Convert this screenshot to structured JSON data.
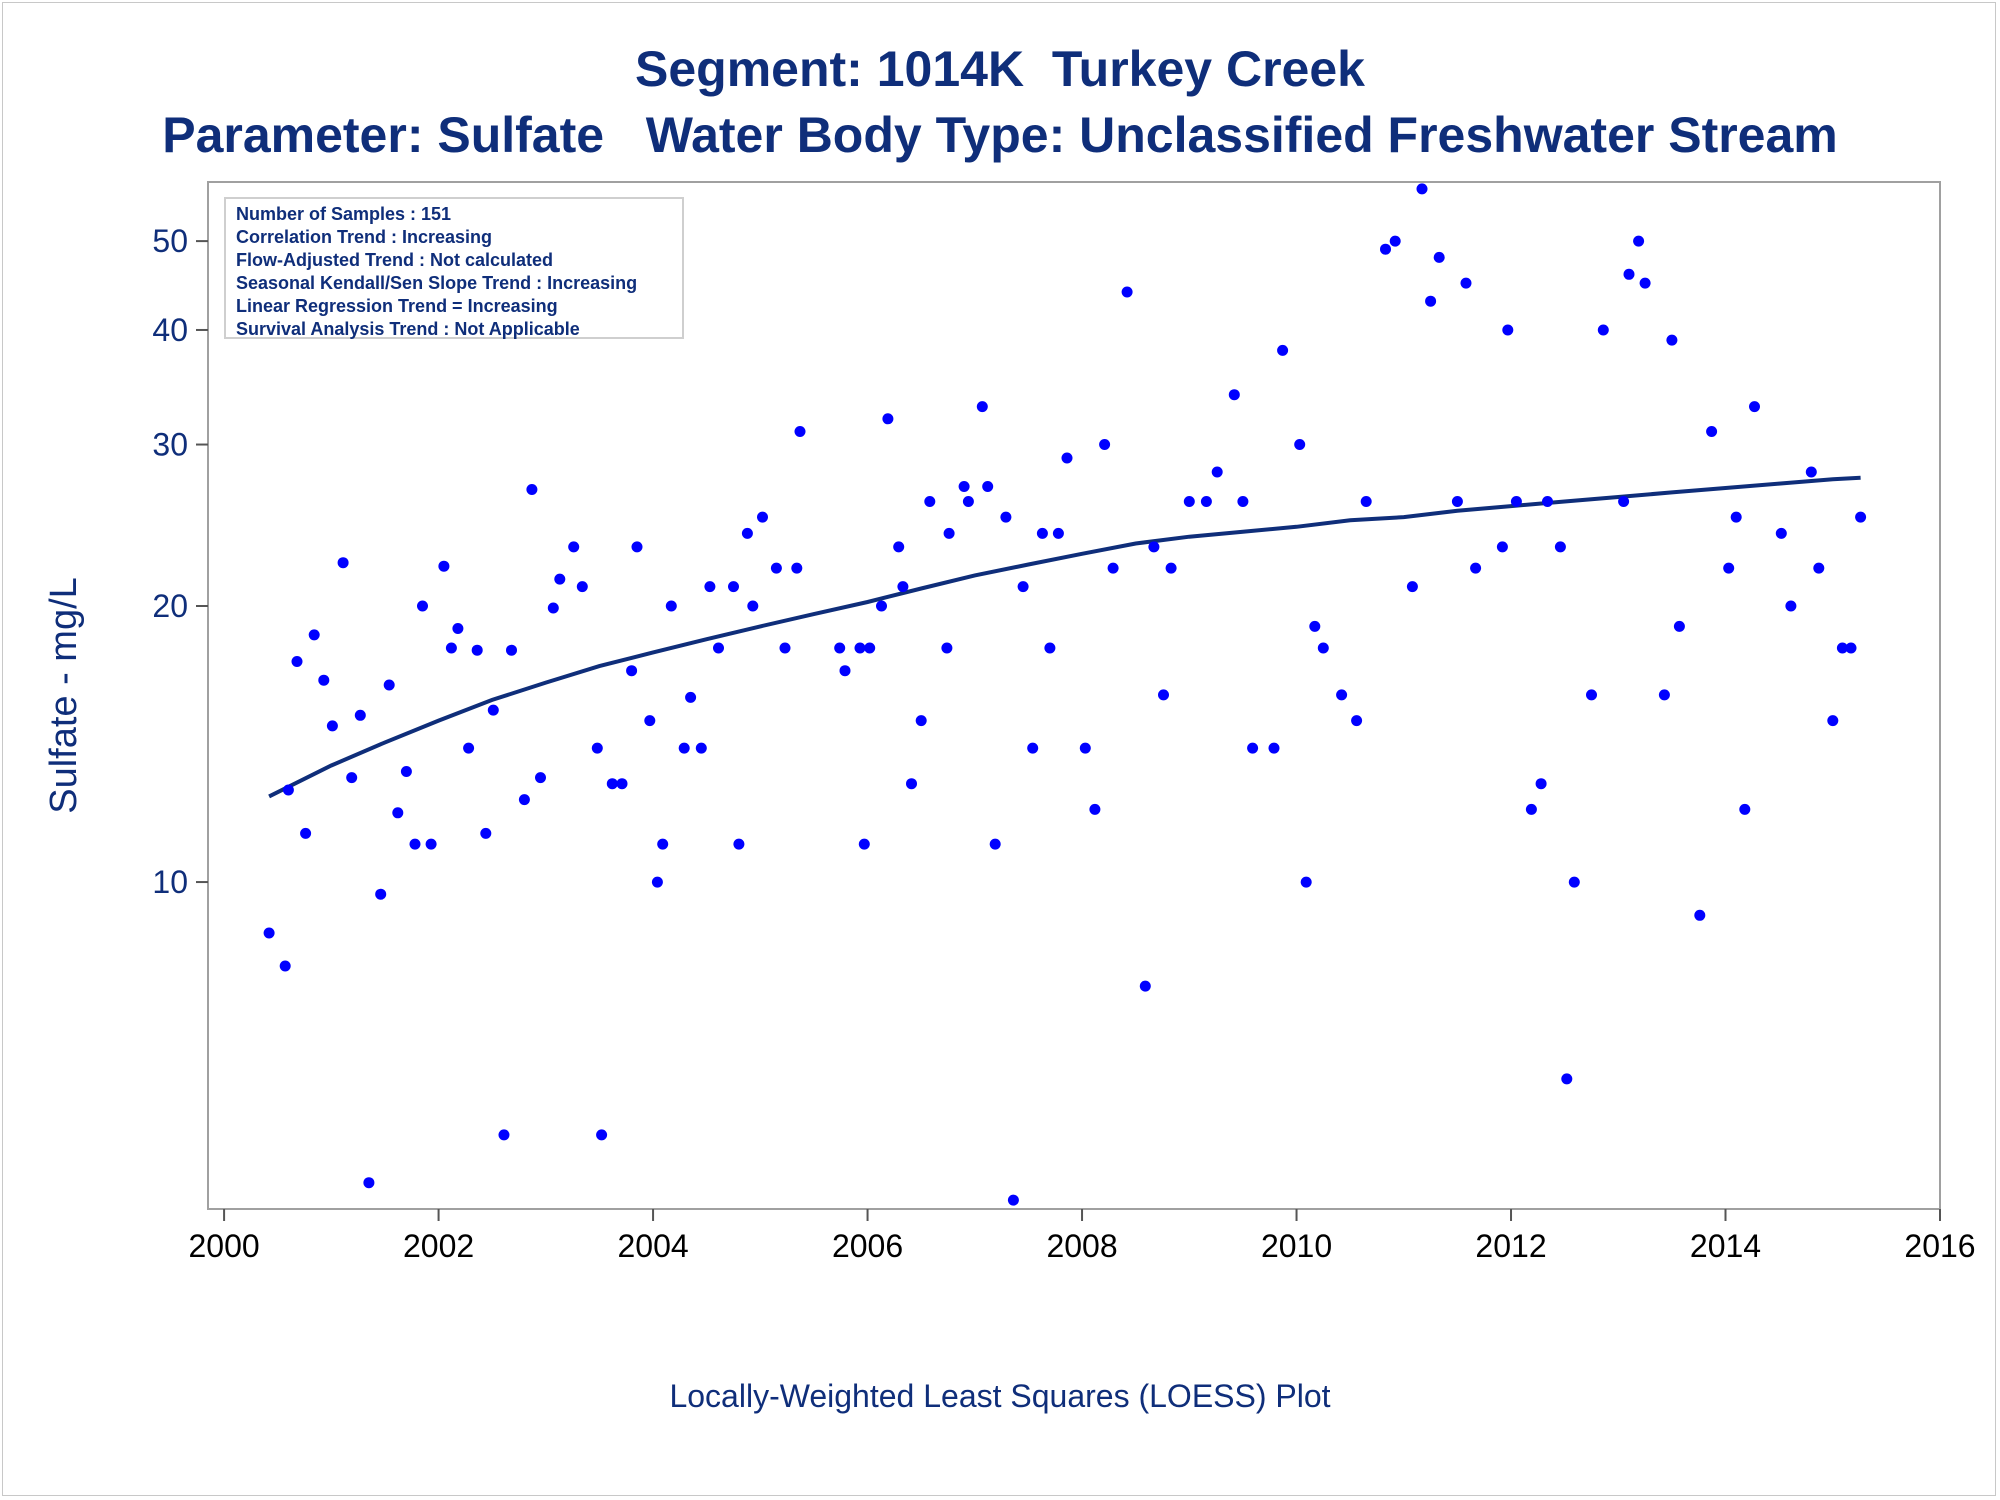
{
  "title_line1": "Segment: 1014K  Turkey Creek",
  "title_line2": "Parameter: Sulfate   Water Body Type: Unclassified Freshwater Stream",
  "stats": [
    "Number of Samples : 151",
    "Correlation Trend : Increasing",
    "Flow-Adjusted Trend : Not calculated",
    "Seasonal Kendall/Sen Slope Trend : Increasing",
    "Linear Regression Trend = Increasing",
    "Survival Analysis Trend : Not Applicable"
  ],
  "footnote": "Locally-Weighted Least Squares (LOESS) Plot",
  "colors": {
    "text": "#0f2e7a",
    "points": "#0000ff",
    "loess": "#0f2e7a",
    "frame": "#a0a0a0"
  },
  "chart_data": {
    "type": "scatter",
    "ylabel": "Sulfate - mg/L",
    "xlabel": "",
    "y_scale": "log",
    "xlim": [
      1999.85,
      2016.0
    ],
    "ylim": [
      4.4,
      58
    ],
    "x_ticks": [
      "2000",
      "2002",
      "2004",
      "2006",
      "2008",
      "2010",
      "2012",
      "2014",
      "2016"
    ],
    "y_ticks": [
      "10",
      "20",
      "30",
      "40",
      "50"
    ],
    "y_tick_values": [
      10,
      20,
      30,
      40,
      50
    ],
    "series": [
      {
        "kind": "points",
        "points": [
          [
            2000.42,
            8.8
          ],
          [
            2000.57,
            8.1
          ],
          [
            2000.6,
            12.6
          ],
          [
            2000.68,
            17.4
          ],
          [
            2000.76,
            11.3
          ],
          [
            2000.84,
            18.6
          ],
          [
            2000.93,
            16.6
          ],
          [
            2001.01,
            14.8
          ],
          [
            2001.11,
            22.3
          ],
          [
            2001.19,
            13.0
          ],
          [
            2001.27,
            15.2
          ],
          [
            2001.35,
            4.7
          ],
          [
            2001.46,
            9.7
          ],
          [
            2001.54,
            16.4
          ],
          [
            2001.62,
            11.9
          ],
          [
            2001.7,
            13.2
          ],
          [
            2001.78,
            11.0
          ],
          [
            2001.85,
            20.0
          ],
          [
            2001.93,
            11.0
          ],
          [
            2002.05,
            22.1
          ],
          [
            2002.12,
            18.0
          ],
          [
            2002.18,
            18.9
          ],
          [
            2002.28,
            14.0
          ],
          [
            2002.36,
            17.9
          ],
          [
            2002.44,
            11.3
          ],
          [
            2002.51,
            15.4
          ],
          [
            2002.61,
            5.3
          ],
          [
            2002.68,
            17.9
          ],
          [
            2002.8,
            12.3
          ],
          [
            2002.87,
            26.8
          ],
          [
            2002.95,
            13.0
          ],
          [
            2003.07,
            19.9
          ],
          [
            2003.13,
            21.4
          ],
          [
            2003.26,
            23.2
          ],
          [
            2003.34,
            21.0
          ],
          [
            2003.48,
            14.0
          ],
          [
            2003.52,
            5.3
          ],
          [
            2003.62,
            12.8
          ],
          [
            2003.71,
            12.8
          ],
          [
            2003.8,
            17.0
          ],
          [
            2003.85,
            23.2
          ],
          [
            2003.97,
            15.0
          ],
          [
            2004.04,
            10.0
          ],
          [
            2004.09,
            11.0
          ],
          [
            2004.17,
            20.0
          ],
          [
            2004.29,
            14.0
          ],
          [
            2004.35,
            15.9
          ],
          [
            2004.45,
            14.0
          ],
          [
            2004.53,
            21.0
          ],
          [
            2004.61,
            18.0
          ],
          [
            2004.75,
            21.0
          ],
          [
            2004.8,
            11.0
          ],
          [
            2004.88,
            24.0
          ],
          [
            2004.93,
            20.0
          ],
          [
            2005.02,
            25.0
          ],
          [
            2005.15,
            22.0
          ],
          [
            2005.23,
            18.0
          ],
          [
            2005.34,
            22.0
          ],
          [
            2005.37,
            31.0
          ],
          [
            2005.74,
            18.0
          ],
          [
            2005.79,
            17.0
          ],
          [
            2005.93,
            18.0
          ],
          [
            2005.97,
            11.0
          ],
          [
            2006.02,
            18.0
          ],
          [
            2006.13,
            20.0
          ],
          [
            2006.19,
            32.0
          ],
          [
            2006.29,
            23.2
          ],
          [
            2006.33,
            21.0
          ],
          [
            2006.41,
            12.8
          ],
          [
            2006.5,
            15.0
          ],
          [
            2006.58,
            26.0
          ],
          [
            2006.74,
            18.0
          ],
          [
            2006.76,
            24.0
          ],
          [
            2006.9,
            27.0
          ],
          [
            2006.94,
            26.0
          ],
          [
            2007.07,
            33.0
          ],
          [
            2007.12,
            27.0
          ],
          [
            2007.19,
            11.0
          ],
          [
            2007.29,
            25.0
          ],
          [
            2007.36,
            4.5
          ],
          [
            2007.45,
            21.0
          ],
          [
            2007.54,
            14.0
          ],
          [
            2007.63,
            24.0
          ],
          [
            2007.7,
            18.0
          ],
          [
            2007.78,
            24.0
          ],
          [
            2007.86,
            29.0
          ],
          [
            2008.03,
            14.0
          ],
          [
            2008.12,
            12.0
          ],
          [
            2008.21,
            30.0
          ],
          [
            2008.29,
            22.0
          ],
          [
            2008.42,
            44.0
          ],
          [
            2008.59,
            7.7
          ],
          [
            2008.67,
            23.2
          ],
          [
            2008.76,
            16.0
          ],
          [
            2008.83,
            22.0
          ],
          [
            2009.0,
            26.0
          ],
          [
            2009.16,
            26.0
          ],
          [
            2009.26,
            28.0
          ],
          [
            2009.42,
            34.0
          ],
          [
            2009.5,
            26.0
          ],
          [
            2009.59,
            14.0
          ],
          [
            2009.79,
            14.0
          ],
          [
            2009.87,
            38.0
          ],
          [
            2010.03,
            30.0
          ],
          [
            2010.09,
            10.0
          ],
          [
            2010.17,
            19.0
          ],
          [
            2010.25,
            18.0
          ],
          [
            2010.42,
            16.0
          ],
          [
            2010.56,
            15.0
          ],
          [
            2010.65,
            26.0
          ],
          [
            2010.83,
            49.0
          ],
          [
            2010.92,
            50.0
          ],
          [
            2011.08,
            21.0
          ],
          [
            2011.17,
            57.0
          ],
          [
            2011.25,
            43.0
          ],
          [
            2011.33,
            48.0
          ],
          [
            2011.5,
            26.0
          ],
          [
            2011.58,
            45.0
          ],
          [
            2011.67,
            22.0
          ],
          [
            2011.92,
            23.2
          ],
          [
            2011.97,
            40.0
          ],
          [
            2012.05,
            26.0
          ],
          [
            2012.19,
            12.0
          ],
          [
            2012.28,
            12.8
          ],
          [
            2012.34,
            26.0
          ],
          [
            2012.46,
            23.2
          ],
          [
            2012.52,
            6.1
          ],
          [
            2012.59,
            10.0
          ],
          [
            2012.75,
            16.0
          ],
          [
            2012.86,
            40.0
          ],
          [
            2013.05,
            26.0
          ],
          [
            2013.1,
            46.0
          ],
          [
            2013.19,
            50.0
          ],
          [
            2013.25,
            45.0
          ],
          [
            2013.43,
            16.0
          ],
          [
            2013.5,
            39.0
          ],
          [
            2013.57,
            19.0
          ],
          [
            2013.76,
            9.2
          ],
          [
            2013.87,
            31.0
          ],
          [
            2014.03,
            22.0
          ],
          [
            2014.1,
            25.0
          ],
          [
            2014.18,
            12.0
          ],
          [
            2014.27,
            33.0
          ],
          [
            2014.52,
            24.0
          ],
          [
            2014.61,
            20.0
          ],
          [
            2014.8,
            28.0
          ],
          [
            2014.87,
            22.0
          ],
          [
            2015.0,
            15.0
          ],
          [
            2015.09,
            18.0
          ],
          [
            2015.17,
            18.0
          ],
          [
            2015.26,
            25.0
          ]
        ]
      },
      {
        "kind": "loess",
        "points": [
          [
            2000.42,
            12.4
          ],
          [
            2001.0,
            13.4
          ],
          [
            2001.5,
            14.2
          ],
          [
            2002.0,
            15.0
          ],
          [
            2002.5,
            15.8
          ],
          [
            2003.0,
            16.5
          ],
          [
            2003.5,
            17.2
          ],
          [
            2004.0,
            17.8
          ],
          [
            2004.5,
            18.4
          ],
          [
            2005.0,
            19.0
          ],
          [
            2005.5,
            19.6
          ],
          [
            2006.0,
            20.2
          ],
          [
            2006.5,
            20.9
          ],
          [
            2007.0,
            21.6
          ],
          [
            2007.5,
            22.2
          ],
          [
            2008.0,
            22.8
          ],
          [
            2008.5,
            23.4
          ],
          [
            2009.0,
            23.8
          ],
          [
            2009.5,
            24.1
          ],
          [
            2010.0,
            24.4
          ],
          [
            2010.5,
            24.8
          ],
          [
            2011.0,
            25.0
          ],
          [
            2011.5,
            25.4
          ],
          [
            2012.0,
            25.7
          ],
          [
            2012.5,
            26.0
          ],
          [
            2013.0,
            26.3
          ],
          [
            2013.5,
            26.6
          ],
          [
            2014.0,
            26.9
          ],
          [
            2014.5,
            27.2
          ],
          [
            2015.0,
            27.5
          ],
          [
            2015.26,
            27.6
          ]
        ]
      }
    ]
  }
}
